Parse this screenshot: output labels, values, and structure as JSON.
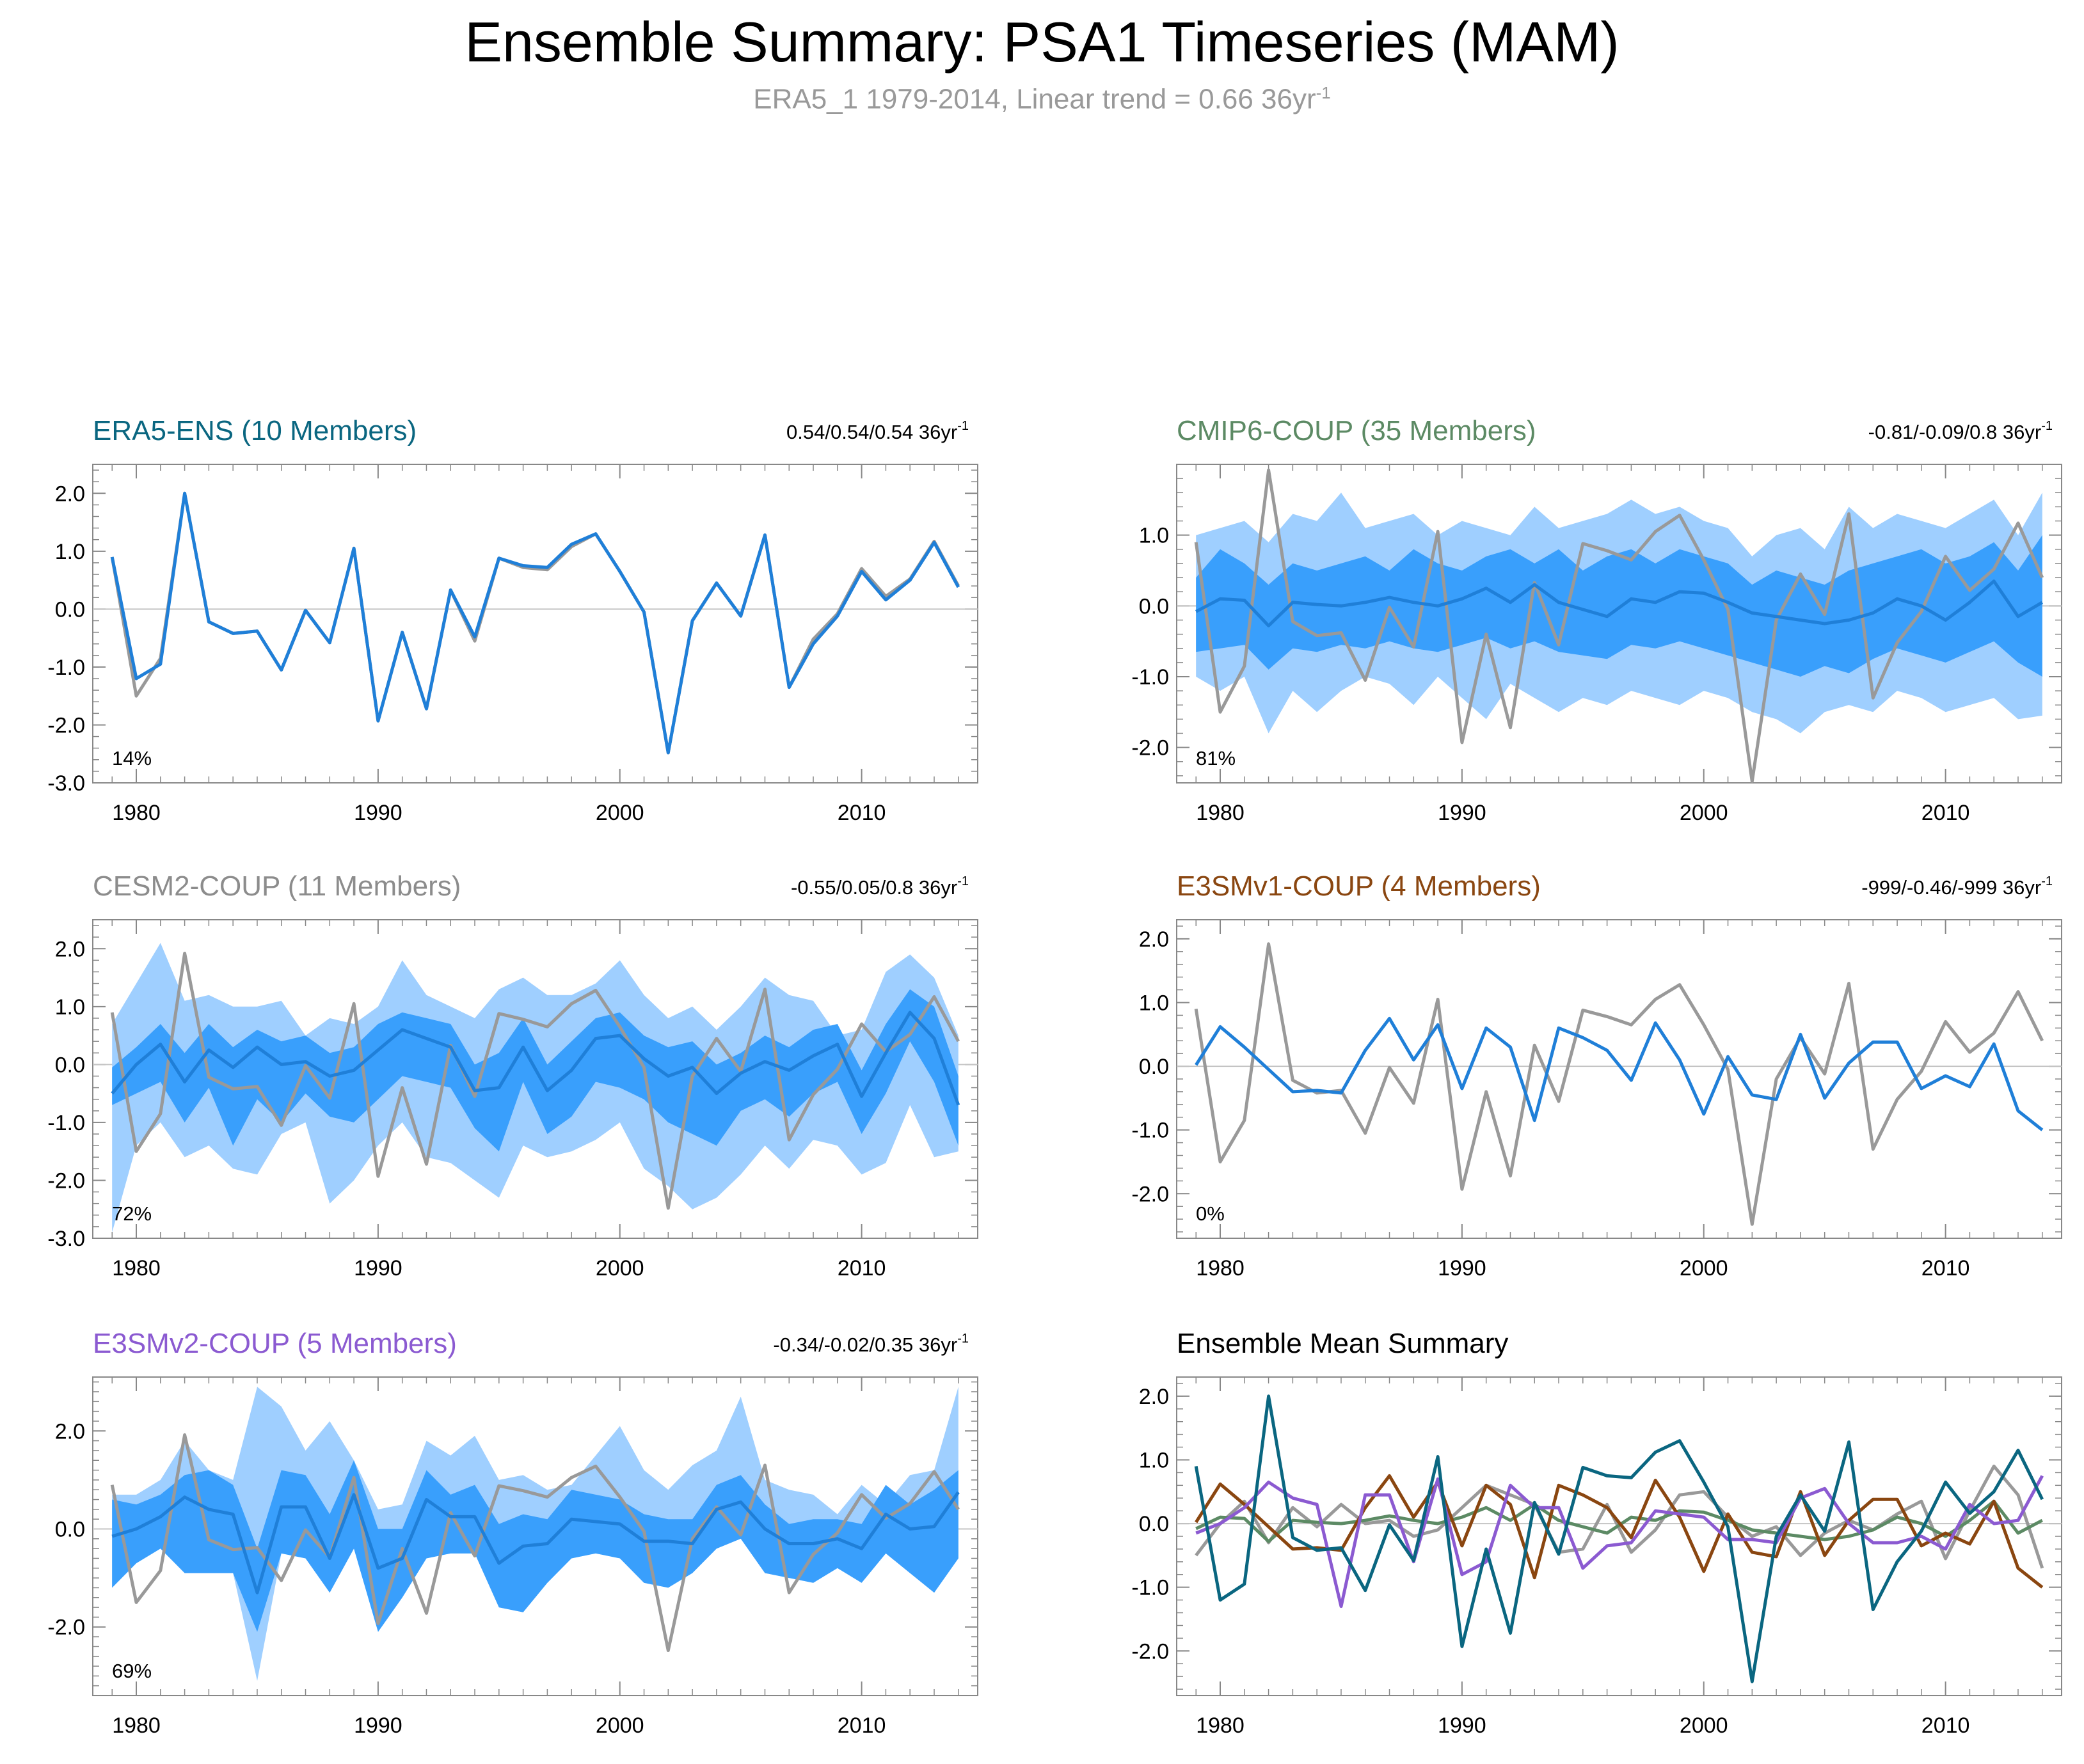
{
  "title": "Ensemble Summary: PSA1 Timeseries (MAM)",
  "subtitle": {
    "text": "ERA5_1 1979-2014, Linear trend = 0.66 36yr",
    "sup": "-1"
  },
  "colors": {
    "obs": "#999999",
    "ens_mean": "#1f7fd8",
    "band_outer": "#9fcfff",
    "band_inner": "#399ffc",
    "era5": "#0a6680",
    "cmip6": "#5c8a64",
    "cesm2": "#8c8c8c",
    "e3smv1": "#8a4610",
    "e3smv2": "#8b5ad1"
  },
  "chart_data": [
    {
      "type": "line",
      "panel": "ERA5-ENS",
      "title": "ERA5-ENS (10 Members)",
      "title_color": "#0a6680",
      "trend": "0.54/0.54/0.54 36yr",
      "trend_sup": "-1",
      "pct": "14%",
      "ylim": [
        -3,
        2.5
      ],
      "yticks": [
        2,
        1,
        0,
        -1,
        -2,
        -3
      ],
      "ytick_labels": [
        "2.0",
        "1.0",
        "0.0",
        "-1.0",
        "-2.0",
        "-3.0"
      ],
      "xlim": [
        1978.2,
        2014.8
      ],
      "xticks": [
        1980,
        1990,
        2000,
        2010
      ],
      "obs": [
        0.9,
        -1.5,
        -0.85,
        2.0,
        -0.22,
        -0.42,
        -0.38,
        -1.05,
        -0.02,
        -0.58,
        1.05,
        -1.93,
        -0.4,
        -1.72,
        0.33,
        -0.55,
        0.88,
        0.72,
        0.68,
        1.08,
        1.3,
        0.65,
        -0.05,
        -2.48,
        -0.2,
        0.45,
        -0.12,
        1.28,
        -1.35,
        -0.52,
        -0.08,
        0.7,
        0.22,
        0.52,
        1.17,
        0.4
      ],
      "mean": [
        0.9,
        -1.2,
        -0.95,
        2.0,
        -0.22,
        -0.42,
        -0.38,
        -1.05,
        -0.02,
        -0.58,
        1.05,
        -1.93,
        -0.4,
        -1.72,
        0.33,
        -0.48,
        0.88,
        0.75,
        0.72,
        1.12,
        1.3,
        0.65,
        -0.05,
        -2.48,
        -0.2,
        0.45,
        -0.12,
        1.28,
        -1.35,
        -0.6,
        -0.12,
        0.65,
        0.16,
        0.5,
        1.15,
        0.38
      ]
    },
    {
      "type": "line",
      "panel": "CMIP6-COUP",
      "title": "CMIP6-COUP (35 Members)",
      "title_color": "#5c8a64",
      "trend": "-0.81/-0.09/0.8 36yr",
      "trend_sup": "-1",
      "pct": "81%",
      "ylim": [
        -2.5,
        2.0
      ],
      "yticks": [
        1,
        0,
        -1,
        -2
      ],
      "ytick_labels": [
        "1.0",
        "0.0",
        "-1.0",
        "-2.0"
      ],
      "xlim": [
        1978.2,
        2014.8
      ],
      "xticks": [
        1980,
        1990,
        2000,
        2010
      ],
      "obs": [
        0.9,
        -1.5,
        -0.85,
        1.92,
        -0.22,
        -0.42,
        -0.38,
        -1.05,
        -0.02,
        -0.58,
        1.05,
        -1.93,
        -0.4,
        -1.72,
        0.33,
        -0.55,
        0.88,
        0.78,
        0.65,
        1.05,
        1.28,
        0.65,
        -0.05,
        -2.48,
        -0.2,
        0.45,
        -0.12,
        1.3,
        -1.3,
        -0.52,
        -0.08,
        0.7,
        0.22,
        0.52,
        1.17,
        0.4
      ],
      "mean": [
        -0.08,
        0.1,
        0.08,
        -0.28,
        0.05,
        0.02,
        0.0,
        0.05,
        0.12,
        0.05,
        0.0,
        0.1,
        0.25,
        0.05,
        0.3,
        0.05,
        -0.05,
        -0.15,
        0.1,
        0.05,
        0.2,
        0.18,
        0.05,
        -0.1,
        -0.15,
        -0.2,
        -0.25,
        -0.2,
        -0.1,
        0.1,
        0.0,
        -0.2,
        0.05,
        0.35,
        -0.15,
        0.05
      ],
      "inner_upper": [
        0.4,
        0.8,
        0.6,
        0.3,
        0.6,
        0.5,
        0.6,
        0.7,
        0.5,
        0.8,
        0.6,
        0.5,
        0.7,
        0.8,
        0.6,
        0.8,
        0.5,
        0.7,
        0.8,
        0.6,
        0.8,
        0.7,
        0.6,
        0.3,
        0.5,
        0.4,
        0.3,
        0.5,
        0.6,
        0.7,
        0.8,
        0.6,
        0.7,
        0.9,
        0.5,
        1.0
      ],
      "inner_lower": [
        -0.65,
        -0.6,
        -0.55,
        -0.9,
        -0.6,
        -0.65,
        -0.55,
        -0.6,
        -0.5,
        -0.6,
        -0.65,
        -0.55,
        -0.45,
        -0.6,
        -0.5,
        -0.65,
        -0.7,
        -0.75,
        -0.55,
        -0.6,
        -0.5,
        -0.6,
        -0.7,
        -0.8,
        -0.9,
        -1.0,
        -0.85,
        -0.95,
        -0.75,
        -0.6,
        -0.7,
        -0.8,
        -0.65,
        -0.5,
        -0.8,
        -1.0
      ],
      "outer_upper": [
        1.0,
        1.1,
        1.2,
        0.9,
        1.3,
        1.2,
        1.6,
        1.1,
        1.2,
        1.3,
        1.0,
        1.2,
        1.1,
        1.0,
        1.4,
        1.1,
        1.2,
        1.3,
        1.5,
        1.3,
        1.4,
        1.2,
        1.1,
        0.7,
        1.0,
        1.1,
        0.8,
        1.4,
        1.1,
        1.3,
        1.2,
        1.1,
        1.3,
        1.5,
        1.0,
        1.6
      ],
      "outer_lower": [
        -1.0,
        -1.2,
        -1.0,
        -1.8,
        -1.2,
        -1.5,
        -1.2,
        -1.0,
        -1.1,
        -1.4,
        -1.0,
        -1.3,
        -1.6,
        -1.1,
        -1.3,
        -1.5,
        -1.3,
        -1.4,
        -1.2,
        -1.3,
        -1.4,
        -1.2,
        -1.3,
        -1.5,
        -1.6,
        -1.8,
        -1.5,
        -1.4,
        -1.5,
        -1.2,
        -1.3,
        -1.5,
        -1.4,
        -1.3,
        -1.6,
        -1.55
      ]
    },
    {
      "type": "line",
      "panel": "CESM2-COUP",
      "title": "CESM2-COUP (11 Members)",
      "title_color": "#8c8c8c",
      "trend": "-0.55/0.05/0.8 36yr",
      "trend_sup": "-1",
      "pct": "72%",
      "ylim": [
        -3,
        2.5
      ],
      "yticks": [
        2,
        1,
        0,
        -1,
        -2,
        -3
      ],
      "ytick_labels": [
        "2.0",
        "1.0",
        "0.0",
        "-1.0",
        "-2.0",
        "-3.0"
      ],
      "xlim": [
        1978.2,
        2014.8
      ],
      "xticks": [
        1980,
        1990,
        2000,
        2010
      ],
      "obs": [
        0.9,
        -1.5,
        -0.85,
        1.92,
        -0.22,
        -0.42,
        -0.38,
        -1.05,
        -0.02,
        -0.58,
        1.05,
        -1.93,
        -0.4,
        -1.72,
        0.33,
        -0.55,
        0.88,
        0.78,
        0.65,
        1.05,
        1.28,
        0.65,
        -0.05,
        -2.48,
        -0.2,
        0.45,
        -0.12,
        1.3,
        -1.3,
        -0.52,
        -0.08,
        0.7,
        0.22,
        0.52,
        1.17,
        0.4
      ],
      "mean": [
        -0.5,
        0.0,
        0.35,
        -0.3,
        0.25,
        -0.05,
        0.3,
        0.0,
        0.05,
        -0.2,
        -0.1,
        0.25,
        0.6,
        0.45,
        0.3,
        -0.45,
        -0.4,
        0.3,
        -0.45,
        -0.1,
        0.45,
        0.5,
        0.1,
        -0.2,
        -0.05,
        -0.5,
        -0.15,
        0.05,
        -0.1,
        0.15,
        0.35,
        -0.55,
        0.2,
        0.9,
        0.45,
        -0.7
      ],
      "inner_upper": [
        -0.05,
        0.3,
        0.7,
        0.2,
        0.7,
        0.3,
        0.6,
        0.4,
        0.5,
        0.2,
        0.3,
        0.7,
        0.9,
        0.8,
        0.7,
        0.0,
        0.2,
        0.8,
        0.0,
        0.4,
        0.8,
        0.9,
        0.5,
        0.3,
        0.4,
        0.0,
        0.2,
        0.5,
        0.3,
        0.6,
        0.7,
        -0.1,
        0.7,
        1.3,
        1.0,
        -0.2
      ],
      "inner_lower": [
        -0.7,
        -0.5,
        -0.3,
        -1.0,
        -0.4,
        -1.4,
        -0.6,
        -1.0,
        -0.5,
        -0.9,
        -1.0,
        -0.6,
        -0.2,
        -0.3,
        -0.4,
        -1.1,
        -1.5,
        -0.3,
        -1.2,
        -0.9,
        -0.3,
        -0.4,
        -0.6,
        -1.0,
        -1.2,
        -1.4,
        -0.8,
        -0.6,
        -0.9,
        -0.5,
        -0.3,
        -1.2,
        -0.5,
        0.4,
        -0.3,
        -1.4
      ],
      "outer_upper": [
        0.7,
        1.4,
        2.1,
        1.1,
        1.2,
        1.0,
        1.0,
        1.1,
        0.5,
        0.8,
        0.7,
        1.0,
        1.8,
        1.2,
        1.0,
        0.8,
        1.3,
        1.5,
        1.2,
        1.2,
        1.4,
        1.8,
        1.2,
        0.8,
        1.0,
        0.6,
        1.0,
        1.5,
        1.2,
        1.1,
        0.5,
        0.6,
        1.6,
        1.9,
        1.5,
        0.5
      ],
      "outer_lower": [
        -2.9,
        -1.4,
        -1.0,
        -1.6,
        -1.4,
        -1.8,
        -1.9,
        -1.2,
        -1.0,
        -2.4,
        -2.0,
        -1.4,
        -1.0,
        -1.6,
        -1.7,
        -2.0,
        -2.3,
        -1.4,
        -1.6,
        -1.5,
        -1.3,
        -1.0,
        -1.8,
        -2.1,
        -2.5,
        -2.3,
        -1.9,
        -1.4,
        -1.8,
        -1.3,
        -1.4,
        -1.9,
        -1.7,
        -0.7,
        -1.6,
        -1.5
      ]
    },
    {
      "type": "line",
      "panel": "E3SMv1-COUP",
      "title": "E3SMv1-COUP (4 Members)",
      "title_color": "#8a4610",
      "trend": "-999/-0.46/-999 36yr",
      "trend_sup": "-1",
      "pct": "0%",
      "ylim": [
        -2.7,
        2.3
      ],
      "yticks": [
        2,
        1,
        0,
        -1,
        -2
      ],
      "ytick_labels": [
        "2.0",
        "1.0",
        "0.0",
        "-1.0",
        "-2.0"
      ],
      "xlim": [
        1978.2,
        2014.8
      ],
      "xticks": [
        1980,
        1990,
        2000,
        2010
      ],
      "obs": [
        0.9,
        -1.5,
        -0.85,
        1.92,
        -0.22,
        -0.42,
        -0.38,
        -1.05,
        -0.02,
        -0.58,
        1.05,
        -1.93,
        -0.4,
        -1.72,
        0.33,
        -0.55,
        0.88,
        0.78,
        0.65,
        1.05,
        1.28,
        0.65,
        -0.05,
        -2.48,
        -0.2,
        0.45,
        -0.12,
        1.3,
        -1.3,
        -0.52,
        -0.08,
        0.7,
        0.22,
        0.52,
        1.17,
        0.4
      ],
      "mean": [
        0.02,
        0.62,
        0.3,
        -0.05,
        -0.4,
        -0.38,
        -0.42,
        0.25,
        0.75,
        0.1,
        0.65,
        -0.35,
        0.6,
        0.3,
        -0.85,
        0.6,
        0.45,
        0.25,
        -0.22,
        0.68,
        0.1,
        -0.75,
        0.15,
        -0.45,
        -0.52,
        0.5,
        -0.5,
        0.05,
        0.38,
        0.38,
        -0.35,
        -0.15,
        -0.32,
        0.35,
        -0.7,
        -1.0
      ]
    },
    {
      "type": "line",
      "panel": "E3SMv2-COUP",
      "title": "E3SMv2-COUP (5 Members)",
      "title_color": "#8b5ad1",
      "trend": "-0.34/-0.02/0.35 36yr",
      "trend_sup": "-1",
      "pct": "69%",
      "ylim": [
        -3.4,
        3.1
      ],
      "yticks": [
        2,
        0,
        -2
      ],
      "ytick_labels": [
        "2.0",
        "0.0",
        "-2.0"
      ],
      "xlim": [
        1978.2,
        2014.8
      ],
      "xticks": [
        1980,
        1990,
        2000,
        2010
      ],
      "obs": [
        0.9,
        -1.5,
        -0.85,
        1.92,
        -0.22,
        -0.42,
        -0.38,
        -1.05,
        -0.02,
        -0.58,
        1.05,
        -1.93,
        -0.4,
        -1.72,
        0.33,
        -0.55,
        0.88,
        0.78,
        0.65,
        1.05,
        1.28,
        0.65,
        -0.05,
        -2.48,
        -0.2,
        0.45,
        -0.12,
        1.3,
        -1.3,
        -0.52,
        -0.08,
        0.7,
        0.22,
        0.52,
        1.17,
        0.4
      ],
      "mean": [
        -0.15,
        0.0,
        0.25,
        0.65,
        0.4,
        0.3,
        -1.3,
        0.45,
        0.45,
        -0.6,
        0.7,
        -0.8,
        -0.6,
        0.6,
        0.25,
        0.25,
        -0.7,
        -0.35,
        -0.3,
        0.2,
        0.15,
        0.1,
        -0.25,
        -0.25,
        -0.3,
        0.4,
        0.55,
        0.0,
        -0.3,
        -0.3,
        -0.2,
        -0.4,
        0.3,
        0.0,
        0.05,
        0.75
      ],
      "inner_upper": [
        0.6,
        0.5,
        0.7,
        1.1,
        1.2,
        0.9,
        -0.4,
        1.2,
        1.1,
        0.3,
        1.4,
        0.0,
        0.0,
        1.2,
        0.7,
        0.9,
        0.1,
        0.3,
        0.2,
        0.8,
        0.7,
        0.6,
        0.3,
        0.2,
        0.2,
        0.9,
        1.1,
        0.5,
        0.1,
        0.2,
        0.2,
        0.1,
        0.9,
        0.5,
        0.8,
        1.2
      ],
      "inner_lower": [
        -1.2,
        -0.7,
        -0.4,
        -0.9,
        -0.9,
        -0.9,
        -2.1,
        -0.5,
        -0.6,
        -1.3,
        -0.4,
        -2.1,
        -1.4,
        -0.6,
        -0.5,
        -0.5,
        -1.6,
        -1.7,
        -1.1,
        -0.6,
        -0.5,
        -0.6,
        -1.1,
        -1.2,
        -0.9,
        -0.4,
        -0.2,
        -0.9,
        -1.0,
        -1.1,
        -0.8,
        -1.1,
        -0.5,
        -0.9,
        -1.3,
        -0.6
      ],
      "outer_upper": [
        0.7,
        0.7,
        1.0,
        1.8,
        1.2,
        1.0,
        2.9,
        2.5,
        1.6,
        2.2,
        1.4,
        0.4,
        0.5,
        1.8,
        1.5,
        1.9,
        1.0,
        1.1,
        0.8,
        0.9,
        1.5,
        2.1,
        1.2,
        0.8,
        1.3,
        1.6,
        2.7,
        1.0,
        0.8,
        0.7,
        0.3,
        0.9,
        0.5,
        1.1,
        1.2,
        2.9
      ],
      "outer_lower": [
        -1.2,
        -0.7,
        -0.4,
        -0.9,
        -0.9,
        -0.9,
        -3.1,
        -0.5,
        -0.6,
        -1.3,
        -0.4,
        -2.1,
        -1.4,
        -0.6,
        -0.5,
        -0.5,
        -1.6,
        -1.7,
        -1.1,
        -0.6,
        -0.5,
        -0.6,
        -1.1,
        -1.2,
        -0.9,
        -0.4,
        -0.2,
        -0.9,
        -1.0,
        -1.1,
        -0.8,
        -1.1,
        -0.5,
        -0.9,
        -1.3,
        -0.6
      ]
    },
    {
      "type": "line",
      "panel": "Ensemble Mean Summary",
      "title": "Ensemble Mean Summary",
      "title_color": "#000000",
      "trend": "",
      "trend_sup": "",
      "pct": "",
      "ylim": [
        -2.7,
        2.3
      ],
      "yticks": [
        2,
        1,
        0,
        -1,
        -2
      ],
      "ytick_labels": [
        "2.0",
        "1.0",
        "0.0",
        "-1.0",
        "-2.0"
      ],
      "xlim": [
        1978.2,
        2014.8
      ],
      "xticks": [
        1980,
        1990,
        2000,
        2010
      ],
      "series": [
        {
          "name": "CESM2-COUP",
          "color": "#999999",
          "values": [
            -0.5,
            0.0,
            0.35,
            -0.3,
            0.25,
            -0.05,
            0.3,
            0.0,
            0.05,
            -0.2,
            -0.1,
            0.25,
            0.6,
            0.45,
            0.3,
            -0.45,
            -0.4,
            0.3,
            -0.45,
            -0.1,
            0.45,
            0.5,
            0.1,
            -0.2,
            -0.05,
            -0.5,
            -0.15,
            0.05,
            -0.1,
            0.15,
            0.35,
            -0.55,
            0.2,
            0.9,
            0.45,
            -0.7
          ]
        },
        {
          "name": "CMIP6-COUP",
          "color": "#5c8a64",
          "values": [
            -0.08,
            0.1,
            0.08,
            -0.28,
            0.05,
            0.02,
            0.0,
            0.05,
            0.12,
            0.05,
            0.0,
            0.1,
            0.25,
            0.05,
            0.3,
            0.05,
            -0.05,
            -0.15,
            0.1,
            0.05,
            0.2,
            0.18,
            0.05,
            -0.1,
            -0.15,
            -0.2,
            -0.25,
            -0.2,
            -0.1,
            0.1,
            0.0,
            -0.2,
            0.05,
            0.35,
            -0.15,
            0.05
          ]
        },
        {
          "name": "E3SMv1-COUP",
          "color": "#8a4610",
          "values": [
            0.02,
            0.62,
            0.3,
            -0.05,
            -0.4,
            -0.38,
            -0.42,
            0.25,
            0.75,
            0.1,
            0.65,
            -0.35,
            0.6,
            0.3,
            -0.85,
            0.6,
            0.45,
            0.25,
            -0.22,
            0.68,
            0.1,
            -0.75,
            0.15,
            -0.45,
            -0.52,
            0.5,
            -0.5,
            0.05,
            0.38,
            0.38,
            -0.35,
            -0.15,
            -0.32,
            0.35,
            -0.7,
            -1.0
          ]
        },
        {
          "name": "E3SMv2-COUP",
          "color": "#8b5ad1",
          "values": [
            -0.15,
            0.0,
            0.25,
            0.65,
            0.4,
            0.3,
            -1.3,
            0.45,
            0.45,
            -0.6,
            0.7,
            -0.8,
            -0.6,
            0.6,
            0.25,
            0.25,
            -0.7,
            -0.35,
            -0.3,
            0.2,
            0.15,
            0.1,
            -0.25,
            -0.25,
            -0.3,
            0.4,
            0.55,
            0.0,
            -0.3,
            -0.3,
            -0.2,
            -0.4,
            0.3,
            0.0,
            0.05,
            0.75
          ]
        },
        {
          "name": "ERA5-ENS",
          "color": "#0a6680",
          "values": [
            0.9,
            -1.2,
            -0.95,
            2.0,
            -0.22,
            -0.42,
            -0.38,
            -1.05,
            -0.02,
            -0.58,
            1.05,
            -1.93,
            -0.4,
            -1.72,
            0.33,
            -0.48,
            0.88,
            0.75,
            0.72,
            1.12,
            1.3,
            0.65,
            -0.05,
            -2.48,
            -0.2,
            0.45,
            -0.12,
            1.28,
            -1.35,
            -0.6,
            -0.12,
            0.65,
            0.16,
            0.5,
            1.15,
            0.38
          ]
        }
      ]
    }
  ]
}
